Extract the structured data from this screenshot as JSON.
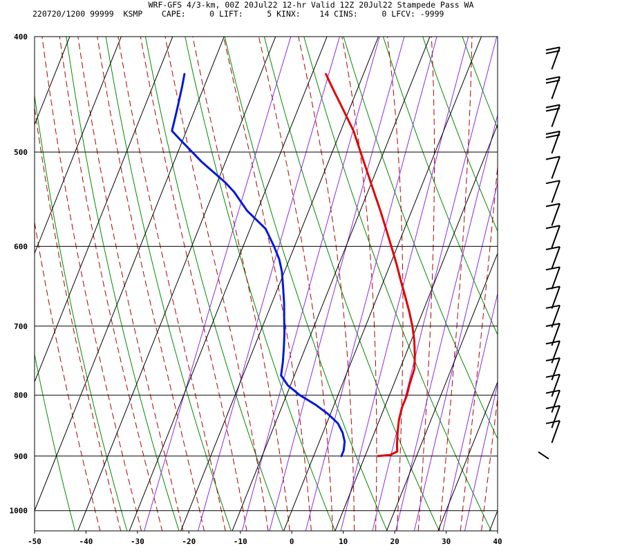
{
  "header": {
    "title": "WRF-GFS 4/3-km, 00Z 20Jul22 12-hr Valid 12Z 20Jul22 Stampede Pass WA",
    "info": "220720/1200 99999  KSMP    CAPE:     0 LIFT:     5 KINX:    14 CINS:     0 LFCV: -9999"
  },
  "chart_data": {
    "type": "line",
    "title": "WRF-GFS 4/3-km, 00Z 20Jul22 12-hr Valid 12Z 20Jul22 Stampede Pass WA",
    "subtitle": "220720/1200 99999  KSMP    CAPE:     0 LIFT:     5 KINX:    14 CINS:     0 LFCV: -9999",
    "xlabel": "",
    "ylabel": "",
    "x_axis": {
      "range": [
        -50,
        40
      ],
      "ticks": [
        -50,
        -40,
        -30,
        -20,
        -10,
        0,
        10,
        20,
        30,
        40
      ]
    },
    "y_axis": {
      "scale": "log",
      "inverted": true,
      "range": [
        1040,
        400
      ],
      "ticks": [
        400,
        500,
        600,
        700,
        800,
        900,
        1000
      ]
    },
    "grid": true,
    "skew_per_decade_p": 0.4,
    "colors": {
      "temperature": "#e00000",
      "dewpoint": "#0018d8",
      "isotherm": "#000000",
      "isobar": "#000000",
      "dry_adiabat": "#008800",
      "moist_adiabat": "#aa0000",
      "mixing_ratio": "#8a2be2"
    },
    "series": [
      {
        "role": "temperature",
        "color": "#e00000",
        "points": [
          {
            "p": 900,
            "t": 12.5
          },
          {
            "p": 898,
            "t": 14.8
          },
          {
            "p": 892,
            "t": 15.9
          },
          {
            "p": 880,
            "t": 15.3
          },
          {
            "p": 860,
            "t": 14.5
          },
          {
            "p": 840,
            "t": 13.8
          },
          {
            "p": 820,
            "t": 13.4
          },
          {
            "p": 800,
            "t": 13.4
          },
          {
            "p": 785,
            "t": 13.1
          },
          {
            "p": 760,
            "t": 12.8
          },
          {
            "p": 740,
            "t": 11.8
          },
          {
            "p": 720,
            "t": 10.6
          },
          {
            "p": 700,
            "t": 9.1
          },
          {
            "p": 680,
            "t": 7.3
          },
          {
            "p": 660,
            "t": 5.3
          },
          {
            "p": 640,
            "t": 3.2
          },
          {
            "p": 620,
            "t": 1.1
          },
          {
            "p": 600,
            "t": -1.2
          },
          {
            "p": 580,
            "t": -3.6
          },
          {
            "p": 560,
            "t": -6.1
          },
          {
            "p": 540,
            "t": -8.8
          },
          {
            "p": 520,
            "t": -11.6
          },
          {
            "p": 500,
            "t": -14.5
          },
          {
            "p": 480,
            "t": -17.5
          },
          {
            "p": 460,
            "t": -21.3
          },
          {
            "p": 440,
            "t": -25.3
          },
          {
            "p": 430,
            "t": -27.3
          }
        ]
      },
      {
        "role": "dewpoint",
        "color": "#0018d8",
        "points": [
          {
            "p": 900,
            "t": 5.4
          },
          {
            "p": 890,
            "t": 5.4
          },
          {
            "p": 875,
            "t": 4.9
          },
          {
            "p": 860,
            "t": 3.8
          },
          {
            "p": 845,
            "t": 2.2
          },
          {
            "p": 830,
            "t": -0.4
          },
          {
            "p": 815,
            "t": -3.6
          },
          {
            "p": 800,
            "t": -7.4
          },
          {
            "p": 785,
            "t": -10.5
          },
          {
            "p": 770,
            "t": -12.6
          },
          {
            "p": 750,
            "t": -13.3
          },
          {
            "p": 730,
            "t": -14.2
          },
          {
            "p": 710,
            "t": -15.2
          },
          {
            "p": 690,
            "t": -16.4
          },
          {
            "p": 670,
            "t": -17.6
          },
          {
            "p": 650,
            "t": -19.0
          },
          {
            "p": 630,
            "t": -20.5
          },
          {
            "p": 615,
            "t": -22.0
          },
          {
            "p": 600,
            "t": -24.0
          },
          {
            "p": 580,
            "t": -27.0
          },
          {
            "p": 560,
            "t": -32.0
          },
          {
            "p": 540,
            "t": -36.0
          },
          {
            "p": 530,
            "t": -38.5
          },
          {
            "p": 510,
            "t": -44.5
          },
          {
            "p": 490,
            "t": -50.0
          },
          {
            "p": 480,
            "t": -52.8
          },
          {
            "p": 460,
            "t": -53.5
          },
          {
            "p": 440,
            "t": -54.3
          },
          {
            "p": 430,
            "t": -54.8
          }
        ]
      }
    ],
    "wind_barbs_pressures": [
      900,
      875,
      850,
      825,
      800,
      775,
      750,
      725,
      700,
      675,
      650,
      625,
      600,
      575,
      550,
      525,
      500,
      475,
      450,
      425
    ]
  }
}
